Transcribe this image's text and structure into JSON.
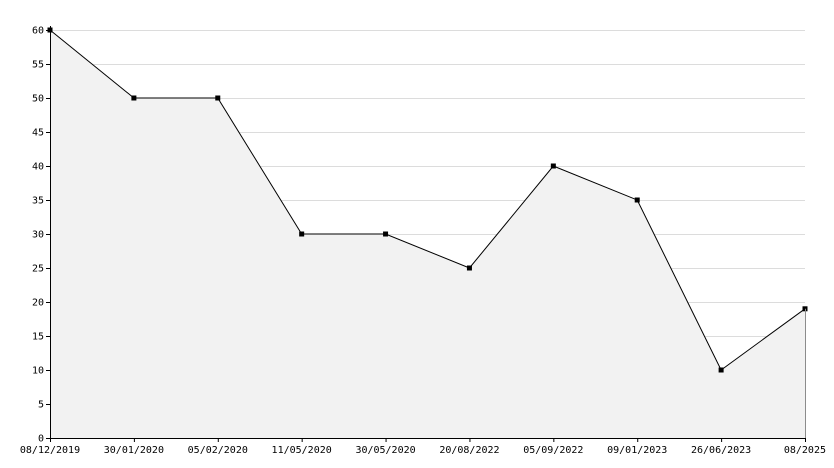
{
  "chart_data": {
    "type": "area",
    "title": "",
    "xlabel": "",
    "ylabel": "",
    "categories": [
      "08/12/2019",
      "30/01/2020",
      "05/02/2020",
      "11/05/2020",
      "30/05/2020",
      "20/08/2022",
      "05/09/2022",
      "09/01/2023",
      "26/06/2023",
      "08/2025"
    ],
    "values": [
      60,
      50,
      50,
      30,
      30,
      25,
      40,
      35,
      10,
      19
    ],
    "ylim": [
      0,
      60
    ],
    "yticks": [
      0,
      5,
      10,
      15,
      20,
      25,
      30,
      35,
      40,
      45,
      50,
      55,
      60
    ],
    "grid": true,
    "legend": "none",
    "colors": {
      "line": "#000000",
      "fill": "#f2f2f2",
      "marker": "#000000",
      "grid": "#dcdcdc"
    }
  }
}
